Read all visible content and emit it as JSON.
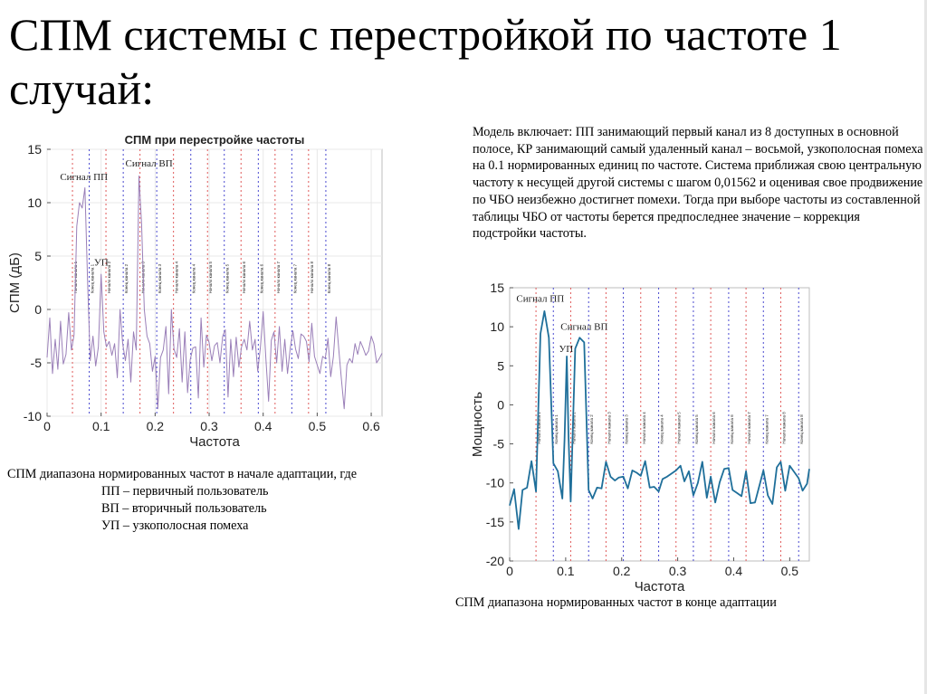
{
  "slide": {
    "title": "СПМ системы с перестройкой по частоте 1 случай:",
    "description": "Модель включает: ПП занимающий первый канал из 8 доступных в основной полосе, КР занимающий самый удаленный канал – восьмой, узкополосная помеха на 0.1 нормированных единиц по частоте. Система приближая свою центральную частоту к несущей другой системы с шагом 0,01562 и оценивая свое продвижение по ЧБО неизбежно достигнет помехи. Тогда при выборе частоты из составленной таблицы ЧБО от частоты берется предпоследнее значение – коррекция подстройки частоты.",
    "caption_left": {
      "line1": "СПМ диапазона нормированных частот в начале адаптации, где",
      "line2": "ПП – первичный пользователь",
      "line3": "ВП – вторичный пользователь",
      "line4": "УП – узкополосная помеха"
    },
    "caption_right": "СПМ диапазона нормированных частот в конце адаптации"
  },
  "colors": {
    "start_marker": "#e05a5a",
    "end_marker": "#4a4ad0",
    "left_series": "#9a7fb8",
    "right_series": "#1f6f9a",
    "grid": "#e8e8e8"
  },
  "chart_data": [
    {
      "type": "line",
      "title": "СПМ при перестройке частоты",
      "xlabel": "Частота",
      "ylabel": "СПМ (дБ)",
      "xlim": [
        0,
        0.62
      ],
      "ylim": [
        -10,
        15
      ],
      "xticks": [
        "0",
        "0.1",
        "0.2",
        "0.3",
        "0.4",
        "0.5",
        "0.6"
      ],
      "yticks": [
        "-10",
        "-5",
        "0",
        "5",
        "10",
        "15"
      ],
      "grid": true,
      "annotations": [
        {
          "text": "Сигнал ПП",
          "x": 0.024,
          "y": 12.1
        },
        {
          "text": "Сигнал ВП",
          "x": 0.145,
          "y": 13.4
        },
        {
          "text": "УП",
          "x": 0.087,
          "y": 4.1
        }
      ],
      "channel_start_lines": [
        0.047,
        0.109,
        0.172,
        0.234,
        0.297,
        0.359,
        0.422,
        0.484
      ],
      "channel_end_lines": [
        0.078,
        0.141,
        0.203,
        0.266,
        0.328,
        0.391,
        0.453,
        0.516
      ],
      "channel_start_label": "Начало канала",
      "channel_end_label": "Конец канала",
      "x": [
        0,
        0.005,
        0.01,
        0.015,
        0.02,
        0.025,
        0.03,
        0.035,
        0.04,
        0.045,
        0.05,
        0.055,
        0.06,
        0.065,
        0.07,
        0.075,
        0.08,
        0.085,
        0.09,
        0.095,
        0.1,
        0.105,
        0.11,
        0.115,
        0.12,
        0.125,
        0.13,
        0.135,
        0.14,
        0.145,
        0.15,
        0.155,
        0.16,
        0.165,
        0.17,
        0.175,
        0.18,
        0.185,
        0.19,
        0.195,
        0.2,
        0.205,
        0.21,
        0.215,
        0.22,
        0.225,
        0.23,
        0.235,
        0.24,
        0.245,
        0.25,
        0.255,
        0.26,
        0.265,
        0.27,
        0.275,
        0.28,
        0.285,
        0.29,
        0.295,
        0.3,
        0.305,
        0.31,
        0.315,
        0.32,
        0.325,
        0.33,
        0.335,
        0.34,
        0.345,
        0.35,
        0.355,
        0.36,
        0.365,
        0.37,
        0.375,
        0.38,
        0.385,
        0.39,
        0.395,
        0.4,
        0.405,
        0.41,
        0.415,
        0.42,
        0.425,
        0.43,
        0.435,
        0.44,
        0.445,
        0.45,
        0.455,
        0.46,
        0.465,
        0.47,
        0.475,
        0.48,
        0.485,
        0.49,
        0.495,
        0.5,
        0.505,
        0.51,
        0.515,
        0.52,
        0.525,
        0.53,
        0.535,
        0.54,
        0.545,
        0.55,
        0.555,
        0.56,
        0.565,
        0.57,
        0.575,
        0.58,
        0.585,
        0.59,
        0.595,
        0.6,
        0.605,
        0.61,
        0.615,
        0.62
      ],
      "y": [
        -4.5,
        -0.8,
        -6,
        -2.8,
        -5.6,
        -1.1,
        -5.1,
        -4.2,
        -0.3,
        -3.8,
        -2.4,
        7.8,
        10,
        9.5,
        11.4,
        2.5,
        -4.8,
        -2.5,
        -5.3,
        -3.5,
        3.3,
        -2.1,
        -3.5,
        -3,
        -4.3,
        -3.2,
        -6.4,
        0,
        -3.2,
        -4.8,
        -2.8,
        -6.8,
        -2.1,
        -3.8,
        12.5,
        8,
        0,
        -2.5,
        -3.2,
        -5.8,
        -4.4,
        -9.3,
        -4.5,
        -3.8,
        -1.6,
        -7.9,
        0,
        -3.7,
        -4.5,
        -1.8,
        -6.8,
        -2.1,
        -7.8,
        -4.7,
        -3.6,
        -3.5,
        -8.3,
        -0.8,
        -5.4,
        -2.4,
        -3.1,
        -4.8,
        -3.4,
        -3.1,
        -5,
        -2.5,
        -1.9,
        -8.2,
        -2.8,
        -6.3,
        -2.6,
        -5.4,
        -3.5,
        -2.8,
        -3.8,
        -1.1,
        -3.8,
        -2.8,
        -5.8,
        -3.5,
        -0.2,
        -4.6,
        -8.6,
        -2.9,
        -2.1,
        -5,
        -1.6,
        -5.8,
        -2.8,
        -6,
        -3.7,
        -2,
        -3.7,
        -4.6,
        -2.3,
        -2.5,
        -3,
        -4.9,
        -1.3,
        -4.4,
        -5.2,
        -6,
        -4.4,
        -4.6,
        -2.7,
        -6.3,
        -4.4,
        -0.7,
        -3.8,
        -6.6,
        -9.3,
        -5.2,
        -4.6,
        -5,
        -3.2,
        -4.2,
        -3,
        -3.6,
        -4.3,
        -3.9,
        -2.5,
        -3.2,
        -5,
        -4.6,
        -4.1
      ],
      "y_note": "approximate trace read from pixels"
    },
    {
      "type": "line",
      "title": "",
      "xlabel": "Частота",
      "ylabel": "Мощность",
      "xlim": [
        0,
        0.535
      ],
      "ylim": [
        -20,
        15
      ],
      "xticks": [
        "0",
        "0.1",
        "0.2",
        "0.3",
        "0.4",
        "0.5"
      ],
      "yticks": [
        "-20",
        "-15",
        "-10",
        "-5",
        "0",
        "5",
        "10",
        "15"
      ],
      "grid": false,
      "annotations": [
        {
          "text": "Сигнал ПП",
          "x": 0.012,
          "y": 13.2
        },
        {
          "text": "Сигнал ВП",
          "x": 0.091,
          "y": 9.6
        },
        {
          "text": "УП",
          "x": 0.088,
          "y": 6.8
        }
      ],
      "channel_start_lines": [
        0.047,
        0.109,
        0.172,
        0.234,
        0.297,
        0.359,
        0.422,
        0.484
      ],
      "channel_end_lines": [
        0.078,
        0.141,
        0.203,
        0.266,
        0.328,
        0.391,
        0.453,
        0.516
      ],
      "channel_start_label": "Начало канала",
      "channel_end_label": "Конец канала",
      "x": [
        0,
        0.008,
        0.016,
        0.023,
        0.031,
        0.039,
        0.047,
        0.055,
        0.062,
        0.07,
        0.078,
        0.086,
        0.094,
        0.098,
        0.102,
        0.105,
        0.109,
        0.117,
        0.125,
        0.133,
        0.141,
        0.148,
        0.156,
        0.164,
        0.172,
        0.18,
        0.188,
        0.195,
        0.203,
        0.211,
        0.219,
        0.227,
        0.234,
        0.242,
        0.25,
        0.258,
        0.266,
        0.273,
        0.281,
        0.289,
        0.297,
        0.305,
        0.312,
        0.32,
        0.328,
        0.336,
        0.344,
        0.352,
        0.359,
        0.367,
        0.375,
        0.383,
        0.391,
        0.398,
        0.406,
        0.414,
        0.422,
        0.43,
        0.438,
        0.445,
        0.453,
        0.461,
        0.469,
        0.477,
        0.484,
        0.492,
        0.5,
        0.508,
        0.516,
        0.523,
        0.531,
        0.535
      ],
      "y": [
        -12.9,
        -10.8,
        -15.9,
        -10.9,
        -10.6,
        -7.2,
        -11.1,
        9.1,
        12,
        8.6,
        -7.5,
        -8.5,
        -12,
        -4.5,
        6.2,
        -4,
        -12.4,
        7.2,
        8.6,
        8,
        -10.9,
        -12,
        -10.6,
        -10.7,
        -7.3,
        -9.2,
        -9.7,
        -9.3,
        -9.2,
        -10.7,
        -8.4,
        -8.7,
        -9.1,
        -7.2,
        -10.6,
        -10.5,
        -11.1,
        -9.5,
        -9.2,
        -8.8,
        -8.4,
        -7.8,
        -9.8,
        -8.5,
        -11.6,
        -10,
        -7.3,
        -11.9,
        -9.2,
        -12.5,
        -9.9,
        -8.2,
        -8.1,
        -10.9,
        -11.3,
        -11.7,
        -8.5,
        -12.6,
        -12.5,
        -10.6,
        -8.4,
        -11.6,
        -12.7,
        -8,
        -7.3,
        -11,
        -7.8,
        -8.6,
        -9.4,
        -11,
        -10.1,
        -8.2
      ],
      "y_note": "approximate trace read from pixels"
    }
  ]
}
